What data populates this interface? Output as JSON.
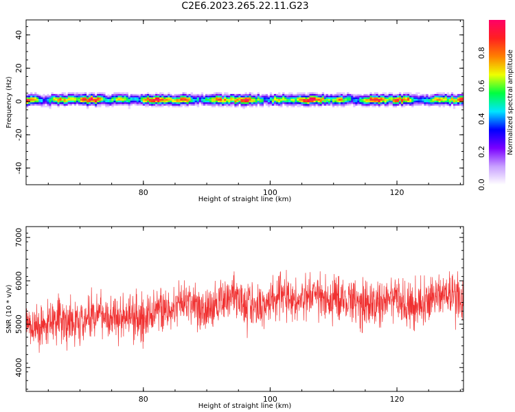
{
  "figure": {
    "title": "C2E6.2023.265.22.11.G23"
  },
  "colors": {
    "snr_line": "#f03030",
    "colormap": [
      "#ffffff",
      "#c8a0ff",
      "#7a00ff",
      "#0000ff",
      "#00e5ff",
      "#00ff40",
      "#eeff00",
      "#ff8000",
      "#ff2020",
      "#ff0066"
    ]
  },
  "chart_data": [
    {
      "type": "heatmap",
      "title": "",
      "xlabel": "Height of straight line (km)",
      "ylabel": "Frequency (Hz)",
      "xlim": [
        61.5,
        130.5
      ],
      "ylim": [
        -50,
        49
      ],
      "xticks": [
        80,
        100,
        120
      ],
      "yticks": [
        40,
        20,
        0,
        -20,
        -40
      ],
      "ytick_labels": [
        "40",
        "20",
        "0",
        "-20",
        "-40"
      ],
      "colorbar": {
        "label": "Normalized spectral amplitude",
        "range": [
          0,
          1
        ],
        "ticks": [
          0.0,
          0.2,
          0.4,
          0.6,
          0.8
        ],
        "tick_labels": [
          "0.0",
          "0.2",
          "0.4",
          "0.6",
          "0.8"
        ]
      },
      "signal_band_hz": [
        -5,
        5
      ],
      "peak_frequency_hz": 1
    },
    {
      "type": "line",
      "title": "",
      "xlabel": "Height of straight line (km)",
      "ylabel": "SNR (10 * v/v)",
      "xlim": [
        61.5,
        130.5
      ],
      "ylim": [
        3450,
        7250
      ],
      "xticks": [
        80,
        100,
        120
      ],
      "yticks": [
        4000,
        5000,
        6000,
        7000
      ],
      "series": [
        {
          "x": [
            62,
            64,
            66,
            68,
            70,
            72,
            74,
            76,
            78,
            80,
            82,
            84,
            86,
            88,
            90,
            92,
            94,
            96,
            98,
            100,
            102,
            104,
            106,
            108,
            110,
            112,
            114,
            116,
            118,
            120,
            122,
            124,
            126,
            128,
            130
          ],
          "y": [
            5000,
            4900,
            5200,
            4950,
            5050,
            5200,
            5250,
            5100,
            5200,
            5050,
            5400,
            5300,
            5450,
            5500,
            5300,
            5500,
            5700,
            5550,
            5350,
            5600,
            5700,
            5500,
            5650,
            5600,
            5550,
            5600,
            5500,
            5450,
            5500,
            5600,
            5400,
            5500,
            5600,
            5700,
            5600
          ],
          "spread": [
            500,
            550,
            500,
            600,
            550,
            500,
            500,
            550,
            500,
            600,
            550,
            500,
            550,
            500,
            600,
            550,
            600,
            550,
            550,
            500,
            550,
            550,
            500,
            500,
            550,
            500,
            550,
            550,
            500,
            500,
            550,
            550,
            550,
            600,
            650
          ]
        }
      ]
    }
  ]
}
